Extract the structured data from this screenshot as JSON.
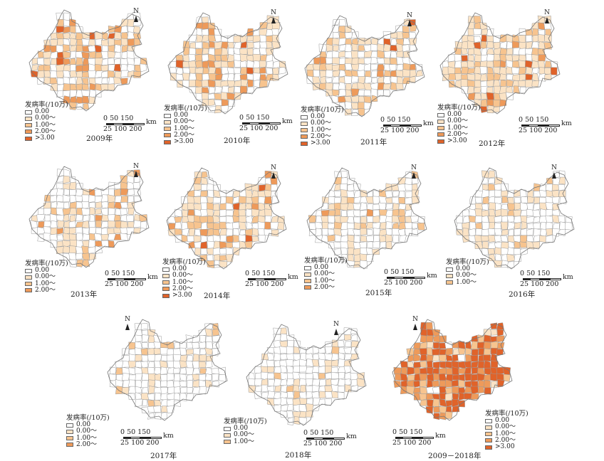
{
  "figure": {
    "north_label": "N",
    "legend_title": "发病率(/10万)",
    "scale_top": "0 50  150",
    "scale_bottom": "25 100 200",
    "scale_unit": "km",
    "colors": {
      "c0": "#ffffff",
      "c1": "#fbe3c5",
      "c2": "#f7c48f",
      "c3": "#ee9a5a",
      "c4": "#e0632a",
      "border": "#9a9a9a"
    }
  },
  "panels": [
    {
      "year": "2009年",
      "legend": [
        {
          "label": "0.00",
          "color": "c0"
        },
        {
          "label": "0.00～",
          "color": "c1"
        },
        {
          "label": "1.00～",
          "color": "c2"
        },
        {
          "label": "2.00～",
          "color": "c3"
        },
        {
          "label": ">3.00",
          "color": "c4"
        }
      ]
    },
    {
      "year": "2010年",
      "legend": [
        {
          "label": "0.00",
          "color": "c0"
        },
        {
          "label": "0.00～",
          "color": "c1"
        },
        {
          "label": "1.00～",
          "color": "c2"
        },
        {
          "label": "2.00～",
          "color": "c3"
        },
        {
          "label": ">3.00",
          "color": "c4"
        }
      ]
    },
    {
      "year": "2011年",
      "legend": [
        {
          "label": "0.00",
          "color": "c0"
        },
        {
          "label": "0.00～",
          "color": "c1"
        },
        {
          "label": "1.00～",
          "color": "c2"
        },
        {
          "label": "2.00～",
          "color": "c3"
        },
        {
          "label": ">3.00",
          "color": "c4"
        }
      ]
    },
    {
      "year": "2012年",
      "legend": [
        {
          "label": "0.00",
          "color": "c0"
        },
        {
          "label": "0.00～",
          "color": "c1"
        },
        {
          "label": "1.00～",
          "color": "c2"
        },
        {
          "label": "2.00～",
          "color": "c3"
        },
        {
          "label": ">3.00",
          "color": "c4"
        }
      ]
    },
    {
      "year": "2013年",
      "legend": [
        {
          "label": "0.00",
          "color": "c0"
        },
        {
          "label": "0.00～",
          "color": "c1"
        },
        {
          "label": "1.00～",
          "color": "c2"
        },
        {
          "label": "2.00～",
          "color": "c3"
        }
      ]
    },
    {
      "year": "2014年",
      "legend": [
        {
          "label": "0.00",
          "color": "c0"
        },
        {
          "label": "0.00～",
          "color": "c1"
        },
        {
          "label": "1.00～",
          "color": "c2"
        },
        {
          "label": "2.00～",
          "color": "c3"
        },
        {
          "label": ">3.00",
          "color": "c4"
        }
      ]
    },
    {
      "year": "2015年",
      "legend": [
        {
          "label": "0.00",
          "color": "c0"
        },
        {
          "label": "0.00～",
          "color": "c1"
        },
        {
          "label": "1.00～",
          "color": "c2"
        },
        {
          "label": "2.00～",
          "color": "c3"
        }
      ]
    },
    {
      "year": "2016年",
      "legend": [
        {
          "label": "0.00",
          "color": "c0"
        },
        {
          "label": "0.00～",
          "color": "c1"
        },
        {
          "label": "1.00～",
          "color": "c2"
        }
      ]
    },
    {
      "year": "2017年",
      "legend": [
        {
          "label": "0.00",
          "color": "c0"
        },
        {
          "label": "0.00～",
          "color": "c1"
        },
        {
          "label": "1.00～",
          "color": "c2"
        },
        {
          "label": "2.00～",
          "color": "c3"
        }
      ]
    },
    {
      "year": "2018年",
      "legend": [
        {
          "label": "0.00",
          "color": "c0"
        },
        {
          "label": "0.00～",
          "color": "c1"
        },
        {
          "label": "1.00～",
          "color": "c2"
        }
      ]
    },
    {
      "year": "2009－2018年",
      "legend": [
        {
          "label": "0.00",
          "color": "c0"
        },
        {
          "label": "0.00～",
          "color": "c1"
        },
        {
          "label": "1.00～",
          "color": "c2"
        },
        {
          "label": "2.00～",
          "color": "c3"
        },
        {
          "label": ">3.00",
          "color": "c4"
        }
      ]
    }
  ]
}
